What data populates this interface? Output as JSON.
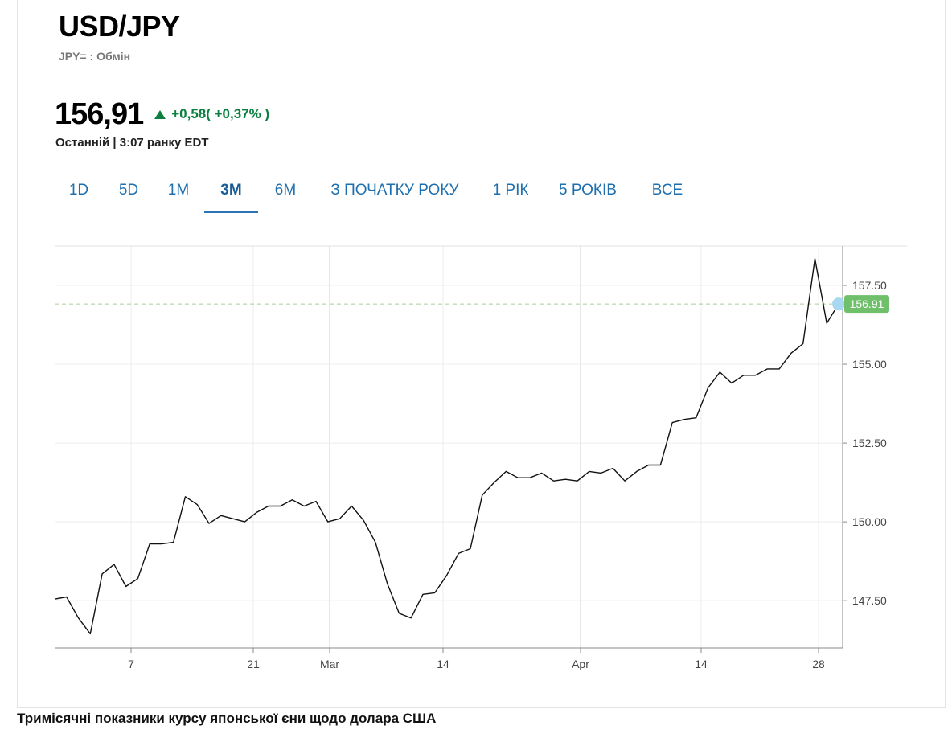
{
  "header": {
    "symbol": "USD/JPY",
    "subtitle": "JPY= : Обмін"
  },
  "quote": {
    "price": "156,91",
    "change": "+0,58( +0,37% )",
    "last_label": "Останній | 3:07 ранку EDT"
  },
  "tabs": [
    {
      "label": "1D"
    },
    {
      "label": "5D"
    },
    {
      "label": "1M"
    },
    {
      "label": "3M",
      "active": true
    },
    {
      "label": "6M"
    },
    {
      "label": "З ПОЧАТКУ РОКУ"
    },
    {
      "label": "1 РІК"
    },
    {
      "label": "5 РОКІВ"
    },
    {
      "label": "ВСЕ"
    }
  ],
  "caption": "Тримісячні показники курсу японської єни щодо долара США",
  "colors": {
    "accent": "#2a74b5",
    "positive": "#0b7f3f",
    "badge": "#6fbf6b",
    "marker": "#a8d8f0"
  },
  "chart_data": {
    "type": "line",
    "series": [
      {
        "values": [
          147.55,
          147.62,
          146.95,
          146.45,
          148.35,
          148.65,
          147.95,
          148.2,
          149.3,
          149.3,
          149.35,
          150.8,
          150.55,
          149.95,
          150.2,
          150.1,
          150.0,
          150.3,
          150.5,
          150.5,
          150.7,
          150.5,
          150.65,
          150.0,
          150.1,
          150.5,
          150.05,
          149.35,
          148.05,
          147.1,
          146.95,
          147.7,
          147.75,
          148.3,
          149.0,
          149.15,
          150.85,
          151.25,
          151.6,
          151.4,
          151.4,
          151.55,
          151.3,
          151.35,
          151.3,
          151.6,
          151.55,
          151.7,
          151.3,
          151.6,
          151.8,
          151.8,
          153.15,
          153.25,
          153.3,
          154.25,
          154.75,
          154.4,
          154.65,
          154.65,
          154.85,
          154.85,
          155.35,
          155.65,
          158.35,
          156.3,
          156.91
        ]
      }
    ],
    "x_ticks": [
      "7",
      "21",
      "Mar",
      "14",
      "Apr",
      "14",
      "28"
    ],
    "y_ticks": [
      "147.50",
      "150.00",
      "152.50",
      "155.00",
      "157.50"
    ],
    "ylim": [
      146.0,
      158.75
    ],
    "last_value": 156.91,
    "last_value_label": "156.91",
    "grid": true
  }
}
